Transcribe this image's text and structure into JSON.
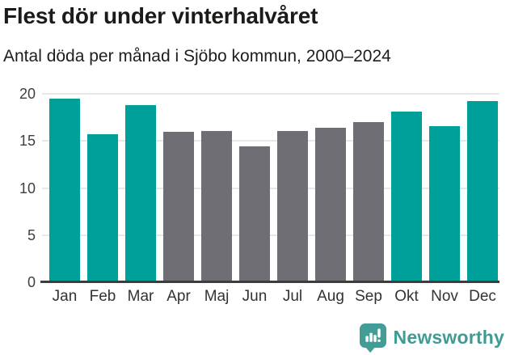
{
  "header": {
    "title": "Flest dör under vinterhalvåret",
    "subtitle": "Antal döda per månad i Sjöbo kommun, 2000–2024"
  },
  "chart_data": {
    "type": "bar",
    "title": "Flest dör under vinterhalvåret",
    "subtitle": "Antal döda per månad i Sjöbo kommun, 2000–2024",
    "categories": [
      "Jan",
      "Feb",
      "Mar",
      "Apr",
      "Maj",
      "Jun",
      "Jul",
      "Aug",
      "Sep",
      "Okt",
      "Nov",
      "Dec"
    ],
    "values": [
      19.4,
      15.6,
      18.7,
      15.9,
      16.0,
      14.3,
      16.0,
      16.3,
      16.9,
      18.0,
      16.5,
      19.1
    ],
    "bar_roles": [
      "highlight",
      "highlight",
      "highlight",
      "base",
      "base",
      "base",
      "base",
      "base",
      "base",
      "highlight",
      "highlight",
      "highlight"
    ],
    "palette": {
      "highlight": "#00a09a",
      "base": "#6e6e74"
    },
    "xlabel": "",
    "ylabel": "",
    "ylim": [
      0,
      20
    ],
    "yticks": [
      0,
      5,
      10,
      15,
      20
    ],
    "gridlines": [
      5,
      10,
      15,
      20
    ],
    "grid": true,
    "legend": "none",
    "axis_line_color": "#3d3d3d",
    "gridline_color": "#e8e8e8"
  },
  "footer": {
    "brand": "Newsworthy",
    "logo_icon": "newsworthy-speech-bubble-bar-chart-icon",
    "brand_color": "#3f9b94",
    "icon_color": "#419d95"
  }
}
